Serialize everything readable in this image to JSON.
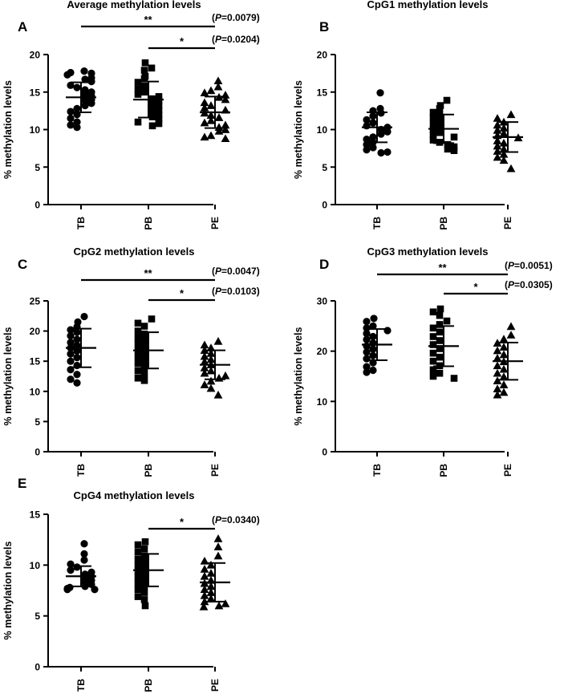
{
  "chart_data": [
    {
      "type": "scatter",
      "panel_label": "A",
      "title": "Average methylation levels",
      "ylabel": "% methylation levels",
      "categories": [
        "TB",
        "PB",
        "PE"
      ],
      "ylim": [
        0,
        20
      ],
      "yticks": [
        "0",
        "5",
        "10",
        "15",
        "20"
      ],
      "markers": [
        "circle",
        "square",
        "triangle"
      ],
      "series": [
        {
          "name": "TB",
          "mean": 14.3,
          "sd_low": 12.3,
          "sd_high": 16.3,
          "values": [
            17.8,
            17.6,
            17.5,
            17.3,
            16.9,
            16.7,
            16.4,
            15.9,
            15.6,
            15.3,
            15.0,
            14.8,
            14.5,
            14.3,
            14.0,
            13.8,
            13.5,
            13.2,
            12.8,
            12.4,
            12.0,
            11.5,
            11.0,
            10.6,
            10.3
          ]
        },
        {
          "name": "PB",
          "mean": 14.0,
          "sd_low": 11.6,
          "sd_high": 16.4,
          "values": [
            18.9,
            18.2,
            17.9,
            17.1,
            16.8,
            16.3,
            15.8,
            15.4,
            15.0,
            14.7,
            14.4,
            14.1,
            13.8,
            13.5,
            13.2,
            12.9,
            12.6,
            12.3,
            12.0,
            11.7,
            11.4,
            11.0,
            10.8,
            10.5
          ]
        },
        {
          "name": "PE",
          "mean": 12.3,
          "sd_low": 10.2,
          "sd_high": 14.4,
          "values": [
            16.5,
            15.7,
            15.2,
            14.9,
            14.6,
            14.3,
            14.0,
            13.6,
            13.2,
            12.9,
            12.6,
            12.2,
            11.9,
            11.6,
            11.2,
            10.9,
            10.6,
            10.3,
            10.0,
            9.8,
            9.2,
            9.0,
            8.8
          ]
        }
      ],
      "comparisons": [
        {
          "groups": [
            "TB",
            "PE"
          ],
          "stars": "**",
          "p_label": "P",
          "p_value": "=0.0079"
        },
        {
          "groups": [
            "PB",
            "PE"
          ],
          "stars": "*",
          "p_label": "P",
          "p_value": "=0.0204"
        }
      ]
    },
    {
      "type": "scatter",
      "panel_label": "B",
      "title": "CpG1 methylation levels",
      "ylabel": "% methylation levels",
      "categories": [
        "TB",
        "PB",
        "PE"
      ],
      "ylim": [
        0,
        20
      ],
      "yticks": [
        "0",
        "5",
        "10",
        "15",
        "20"
      ],
      "markers": [
        "circle",
        "square",
        "triangle"
      ],
      "series": [
        {
          "name": "TB",
          "mean": 10.3,
          "sd_low": 8.3,
          "sd_high": 12.3,
          "values": [
            14.9,
            12.8,
            12.5,
            12.2,
            11.8,
            11.3,
            10.9,
            10.5,
            10.3,
            10.0,
            9.7,
            9.4,
            9.0,
            8.7,
            8.3,
            8.0,
            7.6,
            7.3,
            7.0,
            6.9
          ]
        },
        {
          "name": "PB",
          "mean": 10.1,
          "sd_low": 8.2,
          "sd_high": 12.0,
          "values": [
            13.9,
            13.2,
            12.8,
            12.3,
            12.0,
            11.6,
            11.2,
            10.8,
            10.4,
            10.0,
            9.6,
            9.3,
            9.0,
            8.6,
            8.3,
            8.0,
            7.7,
            7.4,
            7.2
          ]
        },
        {
          "name": "PE",
          "mean": 9.0,
          "sd_low": 7.0,
          "sd_high": 11.0,
          "values": [
            12.0,
            11.5,
            11.0,
            10.6,
            10.2,
            9.9,
            9.5,
            9.2,
            8.9,
            8.5,
            8.2,
            7.8,
            7.4,
            7.1,
            6.7,
            6.3,
            5.9,
            4.8
          ]
        }
      ],
      "comparisons": []
    },
    {
      "type": "scatter",
      "panel_label": "C",
      "title": "CpG2 methylation levels",
      "ylabel": "% methylation levels",
      "categories": [
        "TB",
        "PB",
        "PE"
      ],
      "ylim": [
        0,
        25
      ],
      "yticks": [
        "0",
        "5",
        "10",
        "15",
        "20",
        "25"
      ],
      "markers": [
        "circle",
        "square",
        "triangle"
      ],
      "series": [
        {
          "name": "TB",
          "mean": 17.2,
          "sd_low": 14.0,
          "sd_high": 20.4,
          "values": [
            22.4,
            21.5,
            20.7,
            20.2,
            19.8,
            19.2,
            18.6,
            18.1,
            17.6,
            17.2,
            16.7,
            16.2,
            15.6,
            15.0,
            14.3,
            13.6,
            12.8,
            12.0,
            11.4
          ]
        },
        {
          "name": "PB",
          "mean": 16.8,
          "sd_low": 13.8,
          "sd_high": 19.8,
          "values": [
            22.0,
            21.3,
            20.8,
            20.0,
            19.5,
            18.9,
            18.4,
            17.9,
            17.3,
            16.8,
            16.2,
            15.7,
            15.1,
            14.6,
            14.0,
            13.4,
            12.9,
            12.2,
            11.8
          ]
        },
        {
          "name": "PE",
          "mean": 14.4,
          "sd_low": 12.0,
          "sd_high": 16.8,
          "values": [
            18.3,
            17.7,
            17.2,
            16.8,
            16.3,
            15.8,
            15.3,
            14.9,
            14.4,
            13.9,
            13.4,
            13.0,
            12.6,
            12.2,
            11.7,
            11.1,
            10.5,
            9.4
          ]
        }
      ],
      "comparisons": [
        {
          "groups": [
            "TB",
            "PE"
          ],
          "stars": "**",
          "p_label": "P",
          "p_value": "=0.0047"
        },
        {
          "groups": [
            "PB",
            "PE"
          ],
          "stars": "*",
          "p_label": "P",
          "p_value": "=0.0103"
        }
      ]
    },
    {
      "type": "scatter",
      "panel_label": "D",
      "title": "CpG3 methylation levels",
      "ylabel": "% methylation levels",
      "categories": [
        "TB",
        "PB",
        "PE"
      ],
      "ylim": [
        0,
        30
      ],
      "yticks": [
        "0",
        "10",
        "20",
        "30"
      ],
      "markers": [
        "circle",
        "square",
        "triangle"
      ],
      "series": [
        {
          "name": "TB",
          "mean": 21.3,
          "sd_low": 18.2,
          "sd_high": 24.4,
          "values": [
            26.5,
            25.9,
            25.0,
            24.6,
            24.1,
            23.5,
            22.9,
            22.3,
            21.6,
            21.0,
            20.4,
            19.8,
            19.1,
            18.5,
            17.7,
            16.9,
            16.2,
            15.8
          ]
        },
        {
          "name": "PB",
          "mean": 21.0,
          "sd_low": 17.0,
          "sd_high": 25.0,
          "values": [
            28.4,
            27.8,
            27.1,
            26.0,
            25.3,
            24.6,
            23.8,
            22.9,
            22.1,
            21.3,
            20.5,
            19.6,
            18.8,
            18.0,
            17.1,
            16.3,
            15.6,
            15.0,
            14.6
          ]
        },
        {
          "name": "PE",
          "mean": 18.0,
          "sd_low": 14.3,
          "sd_high": 21.7,
          "values": [
            24.9,
            23.2,
            22.4,
            21.6,
            20.8,
            20.1,
            19.3,
            18.6,
            17.9,
            17.1,
            16.4,
            15.6,
            14.9,
            14.1,
            13.3,
            12.5,
            11.8,
            11.3
          ]
        }
      ],
      "comparisons": [
        {
          "groups": [
            "TB",
            "PE"
          ],
          "stars": "**",
          "p_label": "P",
          "p_value": "=0.0051"
        },
        {
          "groups": [
            "PB",
            "PE"
          ],
          "stars": "*",
          "p_label": "P",
          "p_value": "=0.0305"
        }
      ]
    },
    {
      "type": "scatter",
      "panel_label": "E",
      "title": "CpG4 methylation levels",
      "ylabel": "% methylation levels",
      "categories": [
        "TB",
        "PB",
        "PE"
      ],
      "ylim": [
        0,
        15
      ],
      "yticks": [
        "0",
        "5",
        "10",
        "15"
      ],
      "markers": [
        "circle",
        "square",
        "triangle"
      ],
      "series": [
        {
          "name": "TB",
          "mean": 8.9,
          "sd_low": 7.9,
          "sd_high": 9.9,
          "values": [
            12.1,
            11.1,
            10.5,
            10.1,
            9.8,
            9.5,
            9.3,
            9.1,
            8.9,
            8.7,
            8.5,
            8.3,
            8.1,
            7.9,
            7.8,
            7.7,
            7.6,
            7.6
          ]
        },
        {
          "name": "PB",
          "mean": 9.5,
          "sd_low": 7.9,
          "sd_high": 11.1,
          "values": [
            12.3,
            12.0,
            11.6,
            11.3,
            10.9,
            10.6,
            10.3,
            10.0,
            9.7,
            9.4,
            9.1,
            8.8,
            8.5,
            8.2,
            7.9,
            7.6,
            7.3,
            6.9,
            6.6,
            6.0
          ]
        },
        {
          "name": "PE",
          "mean": 8.3,
          "sd_low": 6.4,
          "sd_high": 10.2,
          "values": [
            12.6,
            11.8,
            10.9,
            10.4,
            10.0,
            9.6,
            9.2,
            8.9,
            8.5,
            8.2,
            7.9,
            7.6,
            7.3,
            7.0,
            6.7,
            6.4,
            6.2,
            6.0,
            5.9
          ]
        }
      ],
      "comparisons": [
        {
          "groups": [
            "PB",
            "PE"
          ],
          "stars": "*",
          "p_label": "P",
          "p_value": "=0.0340"
        }
      ]
    }
  ]
}
